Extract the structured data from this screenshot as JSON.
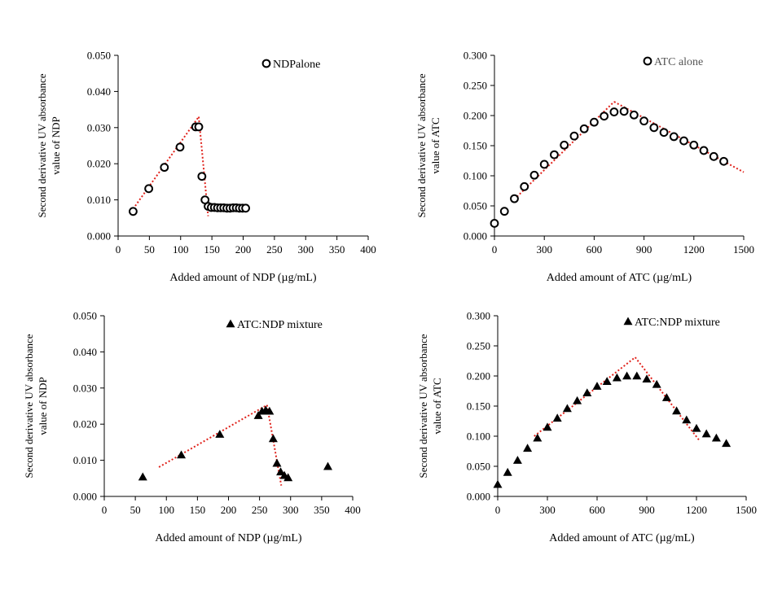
{
  "chart_data": [
    {
      "type": "scatter",
      "legend": "NDPalone",
      "legend_position": "top-right",
      "marker": "circle",
      "xlabel": "Added amount  of NDP (µg/mL)",
      "ylabel_line1": "Second derivative  UV absorbance",
      "ylabel_line2": "value  of  NDP",
      "xlim": [
        0,
        400
      ],
      "ylim": [
        0,
        0.05
      ],
      "xticks": [
        "0",
        "50",
        "100",
        "150",
        "200",
        "250",
        "300",
        "350",
        "400"
      ],
      "yticks": [
        "0.000",
        "0.010",
        "0.020",
        "0.030",
        "0.040",
        "0.050"
      ],
      "x": [
        24,
        49,
        74,
        99,
        124,
        129,
        134,
        139,
        144,
        149,
        154,
        159,
        164,
        169,
        174,
        179,
        184,
        189,
        194,
        199,
        204
      ],
      "y": [
        0.0068,
        0.0131,
        0.019,
        0.0246,
        0.0302,
        0.0302,
        0.0165,
        0.01,
        0.0082,
        0.0079,
        0.0079,
        0.0078,
        0.0078,
        0.0078,
        0.0077,
        0.0077,
        0.0078,
        0.0078,
        0.0077,
        0.0077,
        0.0077
      ],
      "trendlines": [
        {
          "x": [
            24,
            129
          ],
          "y": [
            0.0075,
            0.033
          ]
        },
        {
          "x": [
            129,
            144
          ],
          "y": [
            0.033,
            0.0055
          ]
        }
      ],
      "trend_color": "#e0221b"
    },
    {
      "type": "scatter",
      "legend": "ATC alone",
      "legend_position": "top-right",
      "marker": "circle",
      "xlabel": "Added amount  of ATC  (µg/mL)",
      "ylabel_line1": "Second derivative  UV absorbance",
      "ylabel_line2": "value  of  ATC",
      "xlim": [
        0,
        1500
      ],
      "ylim": [
        0,
        0.3
      ],
      "xticks": [
        "0",
        "300",
        "600",
        "900",
        "1200",
        "1500"
      ],
      "yticks": [
        "0.000",
        "0.050",
        "0.100",
        "0.150",
        "0.200",
        "0.250",
        "0.300"
      ],
      "x": [
        0,
        60,
        120,
        180,
        240,
        300,
        360,
        420,
        480,
        540,
        600,
        660,
        720,
        780,
        840,
        900,
        960,
        1020,
        1080,
        1140,
        1200,
        1260,
        1320,
        1380
      ],
      "y": [
        0.021,
        0.041,
        0.062,
        0.082,
        0.101,
        0.119,
        0.135,
        0.151,
        0.166,
        0.178,
        0.189,
        0.199,
        0.206,
        0.207,
        0.201,
        0.191,
        0.18,
        0.172,
        0.165,
        0.158,
        0.151,
        0.142,
        0.132,
        0.124
      ],
      "trendlines": [
        {
          "x": [
            120,
            720
          ],
          "y": [
            0.061,
            0.223
          ]
        },
        {
          "x": [
            720,
            1500
          ],
          "y": [
            0.223,
            0.106
          ]
        }
      ],
      "trend_color": "#e0221b"
    },
    {
      "type": "scatter",
      "legend": "ATC:NDP mixture",
      "legend_position": "top-right",
      "marker": "triangle",
      "xlabel": "Added amount  of NDP (µg/mL)",
      "ylabel_line1": "Second derivative  UV absorbance",
      "ylabel_line2": "value  of  NDP",
      "xlim": [
        0,
        400
      ],
      "ylim": [
        0,
        0.05
      ],
      "xticks": [
        "0",
        "50",
        "100",
        "150",
        "200",
        "250",
        "300",
        "350",
        "400"
      ],
      "yticks": [
        "0.000",
        "0.010",
        "0.020",
        "0.030",
        "0.040",
        "0.050"
      ],
      "x": [
        62,
        124,
        186,
        248,
        254,
        260,
        266,
        272,
        278,
        284,
        290,
        296,
        360
      ],
      "y": [
        0.0054,
        0.0115,
        0.0172,
        0.0224,
        0.0236,
        0.0239,
        0.0236,
        0.016,
        0.0092,
        0.0068,
        0.0058,
        0.0052,
        0.0083
      ],
      "trendlines": [
        {
          "x": [
            88,
            262
          ],
          "y": [
            0.0081,
            0.0253
          ]
        },
        {
          "x": [
            262,
            285
          ],
          "y": [
            0.0253,
            0.003
          ]
        }
      ],
      "trend_color": "#e0221b"
    },
    {
      "type": "scatter",
      "legend": "ATC:NDP mixture",
      "legend_position": "top-right",
      "marker": "triangle",
      "xlabel": "Added amount  of ATC  (µg/mL)",
      "ylabel_line1": "Second derivative  UV absorbance",
      "ylabel_line2": "value  of  ATC",
      "xlim": [
        0,
        1500
      ],
      "ylim": [
        0,
        0.3
      ],
      "xticks": [
        "0",
        "300",
        "600",
        "900",
        "1200",
        "1500"
      ],
      "yticks": [
        "0.000",
        "0.050",
        "0.100",
        "0.150",
        "0.200",
        "0.250",
        "0.300"
      ],
      "x": [
        0,
        60,
        120,
        180,
        240,
        300,
        360,
        420,
        480,
        540,
        600,
        660,
        720,
        780,
        840,
        900,
        960,
        1020,
        1080,
        1140,
        1200,
        1260,
        1320,
        1380
      ],
      "y": [
        0.02,
        0.04,
        0.06,
        0.08,
        0.097,
        0.115,
        0.13,
        0.146,
        0.159,
        0.172,
        0.183,
        0.191,
        0.197,
        0.2,
        0.2,
        0.195,
        0.186,
        0.164,
        0.142,
        0.127,
        0.113,
        0.104,
        0.097,
        0.088
      ],
      "trendlines": [
        {
          "x": [
            220,
            830
          ],
          "y": [
            0.1,
            0.231
          ]
        },
        {
          "x": [
            830,
            1220
          ],
          "y": [
            0.231,
            0.092
          ]
        }
      ],
      "trend_color": "#e0221b"
    }
  ]
}
